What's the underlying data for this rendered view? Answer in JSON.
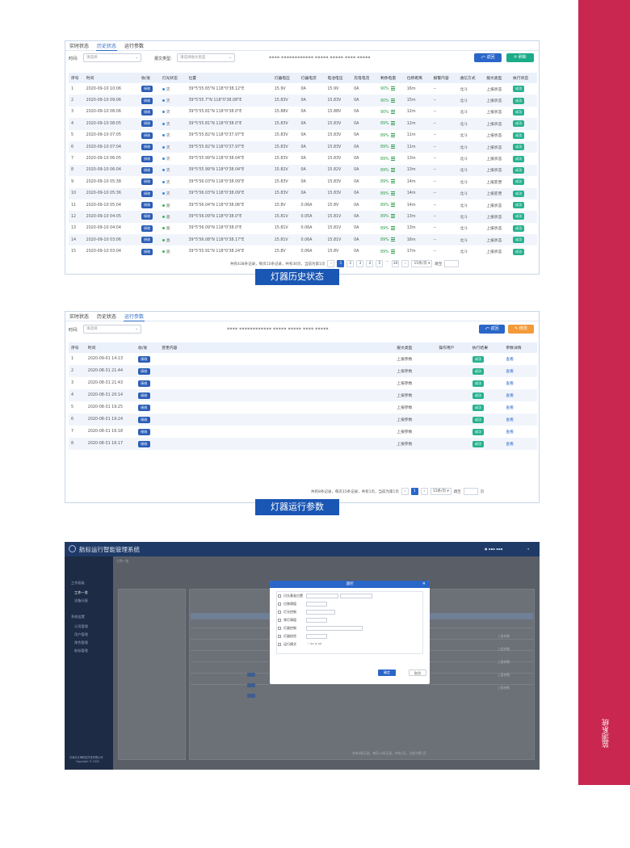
{
  "side_band": {
    "vertical_text": "监测系统"
  },
  "panel1": {
    "tabs": [
      "实时状态",
      "历史状态",
      "运行参数"
    ],
    "active_tab": 1,
    "time_label": "时间:",
    "time_placeholder": "请选择",
    "report_type_label": "报文类型:",
    "report_type_placeholder": "请选择报文类型",
    "buttons": {
      "back": "返回",
      "refresh": "刷新"
    },
    "columns": [
      "序号",
      "时间",
      "收/发",
      "灯光状态",
      "位置",
      "灯器电压",
      "灯器电流",
      "电池电压",
      "充电电流",
      "剩余电量",
      "位移距离",
      "报警内容",
      "通信方式",
      "报文类型",
      "执行状态"
    ],
    "rows": [
      [
        "1",
        "2020-09-10 10:06",
        "接收",
        "灭",
        "39°5'55.65\"N 118°0'38.12\"E",
        "15.9V",
        "0A",
        "15.9V",
        "0A",
        "90%",
        "16m",
        "--",
        "北斗",
        "上报状态",
        "成功"
      ],
      [
        "2",
        "2020-09-10 09:06",
        "接收",
        "灭",
        "39°5'55.7\"N 118°0'38.08\"E",
        "15.83V",
        "0A",
        "15.83V",
        "0A",
        "90%",
        "15m",
        "--",
        "北斗",
        "上报状态",
        "成功"
      ],
      [
        "3",
        "2020-09-10 08:06",
        "接收",
        "灭",
        "39°5'55.81\"N 118°0'38.0\"E",
        "15.88V",
        "0A",
        "15.88V",
        "0A",
        "90%",
        "12m",
        "--",
        "北斗",
        "上报状态",
        "成功"
      ],
      [
        "4",
        "2020-09-10 08:05",
        "接收",
        "灭",
        "39°5'55.81\"N 118°0'38.0\"E",
        "15.83V",
        "0A",
        "15.83V",
        "0A",
        "89%",
        "12m",
        "--",
        "北斗",
        "上报状态",
        "成功"
      ],
      [
        "5",
        "2020-09-10 07:05",
        "接收",
        "灭",
        "39°5'55.82\"N 118°0'37.97\"E",
        "15.83V",
        "0A",
        "15.83V",
        "0A",
        "89%",
        "11m",
        "--",
        "北斗",
        "上报状态",
        "成功"
      ],
      [
        "6",
        "2020-09-10 07:04",
        "接收",
        "灭",
        "39°5'55.82\"N 118°0'37.97\"E",
        "15.83V",
        "0A",
        "15.83V",
        "0A",
        "89%",
        "11m",
        "--",
        "北斗",
        "上报状态",
        "成功"
      ],
      [
        "7",
        "2020-09-10 06:05",
        "接收",
        "灭",
        "39°5'55.99\"N 118°0'38.04\"E",
        "15.83V",
        "0A",
        "15.83V",
        "0A",
        "89%",
        "13m",
        "--",
        "北斗",
        "上报状态",
        "成功"
      ],
      [
        "8",
        "2020-09-10 06:04",
        "接收",
        "灭",
        "39°5'55.99\"N 118°0'38.04\"E",
        "15.82V",
        "0A",
        "15.82V",
        "0A",
        "89%",
        "13m",
        "--",
        "北斗",
        "上报状态",
        "成功"
      ],
      [
        "9",
        "2020-09-10 05:38",
        "接收",
        "灭",
        "39°5'56.03\"N 118°0'38.09\"E",
        "15.83V",
        "0A",
        "15.83V",
        "0A",
        "89%",
        "14m",
        "--",
        "北斗",
        "上报变更",
        "成功"
      ],
      [
        "10",
        "2020-09-10 05:36",
        "接收",
        "灭",
        "39°5'56.03\"N 118°0'38.09\"E",
        "15.83V",
        "0A",
        "15.83V",
        "0A",
        "89%",
        "14m",
        "--",
        "北斗",
        "上报变更",
        "成功"
      ],
      [
        "11",
        "2020-09-10 05:04",
        "接收",
        "亮",
        "39°5'56.04\"N 118°0'38.06\"E",
        "15.8V",
        "0.06A",
        "15.8V",
        "0A",
        "89%",
        "14m",
        "--",
        "北斗",
        "上报状态",
        "成功"
      ],
      [
        "12",
        "2020-09-10 04:05",
        "接收",
        "亮",
        "39°5'56.09\"N 118°0'38.0\"E",
        "15.81V",
        "0.05A",
        "15.81V",
        "0A",
        "89%",
        "13m",
        "--",
        "北斗",
        "上报状态",
        "成功"
      ],
      [
        "13",
        "2020-09-10 04:04",
        "接收",
        "亮",
        "39°5'56.09\"N 118°0'38.0\"E",
        "15.81V",
        "0.06A",
        "15.81V",
        "0A",
        "89%",
        "13m",
        "--",
        "北斗",
        "上报状态",
        "成功"
      ],
      [
        "14",
        "2020-09-10 03:06",
        "接收",
        "亮",
        "39°5'56.08\"N 118°0'38.17\"E",
        "15.81V",
        "0.06A",
        "15.81V",
        "0A",
        "89%",
        "16m",
        "--",
        "北斗",
        "上报状态",
        "成功"
      ],
      [
        "15",
        "2020-09-10 03:04",
        "接收",
        "亮",
        "39°5'55.91\"N 118°0'38.24\"E",
        "15.8V",
        "0.06A",
        "15.8V",
        "0A",
        "89%",
        "17m",
        "--",
        "北斗",
        "上报状态",
        "成功"
      ]
    ],
    "pager": {
      "summary": "共有438条记录，每页15条记录，共有30页，当前为第1页",
      "pages": [
        "1",
        "2",
        "3",
        "4",
        "5",
        "···",
        "30"
      ],
      "current": "1",
      "per_page": "15条/页",
      "jump_label": "跳至"
    },
    "caption": "灯器历史状态"
  },
  "panel2": {
    "tabs": [
      "实时状态",
      "历史状态",
      "运行参数"
    ],
    "active_tab": 2,
    "time_label": "时间:",
    "time_placeholder": "请选择",
    "buttons": {
      "back": "返回",
      "modify": "修改"
    },
    "columns": [
      "序号",
      "时间",
      "收/发",
      "变更内容",
      "报文类型",
      "操作用户",
      "执行结果",
      "参数详情"
    ],
    "rows": [
      [
        "1",
        "2020-09-01 14:13",
        "接收",
        "",
        "上报参数",
        "",
        "成功",
        "查看"
      ],
      [
        "2",
        "2020-08-31 21:44",
        "接收",
        "",
        "上报参数",
        "",
        "成功",
        "查看"
      ],
      [
        "3",
        "2020-08-31 21:43",
        "接收",
        "",
        "上报参数",
        "",
        "成功",
        "查看"
      ],
      [
        "4",
        "2020-08-31 20:14",
        "接收",
        "",
        "上报参数",
        "",
        "成功",
        "查看"
      ],
      [
        "5",
        "2020-08-31 19:25",
        "接收",
        "",
        "上报参数",
        "",
        "成功",
        "查看"
      ],
      [
        "6",
        "2020-08-31 19:24",
        "接收",
        "",
        "上报参数",
        "",
        "成功",
        "查看"
      ],
      [
        "7",
        "2020-08-31 16:18",
        "接收",
        "",
        "上报参数",
        "",
        "成功",
        "查看"
      ],
      [
        "8",
        "2020-08-31 16:17",
        "接收",
        "",
        "上报参数",
        "",
        "成功",
        "查看"
      ]
    ],
    "pager": {
      "summary": "共有8条记录，每页15条记录，共有1页，当前为第1页",
      "current": "1",
      "per_page": "15条/页",
      "jump_label": "跳至",
      "page_unit": "页"
    },
    "caption": "灯器运行参数"
  },
  "panel3": {
    "app_title": "航标运行智能管理系统",
    "breadcrumb": "工作一览",
    "nav": [
      "工作面板",
      "工作一览",
      "设备分配",
      "系统设置",
      "公司管理",
      "用户管理",
      "角色管理",
      "航标管理"
    ],
    "footer_company": "天津天元海科技开发有限公司",
    "footer_copy": "Copyright © 2020",
    "modal": {
      "title": "遥控",
      "fields": [
        "闪光基准位置",
        "位移阈值",
        "灯光控制",
        "常灯阈值",
        "灯器控制",
        "灯器校验",
        "运行模式"
      ],
      "confirm": "确定",
      "cancel": "取消"
    },
    "result_labels": [
      "上报参数",
      "成功",
      "查看"
    ],
    "pager_summary": "共有8条记录，每页15条记录，共有1页，当前为第1页"
  }
}
